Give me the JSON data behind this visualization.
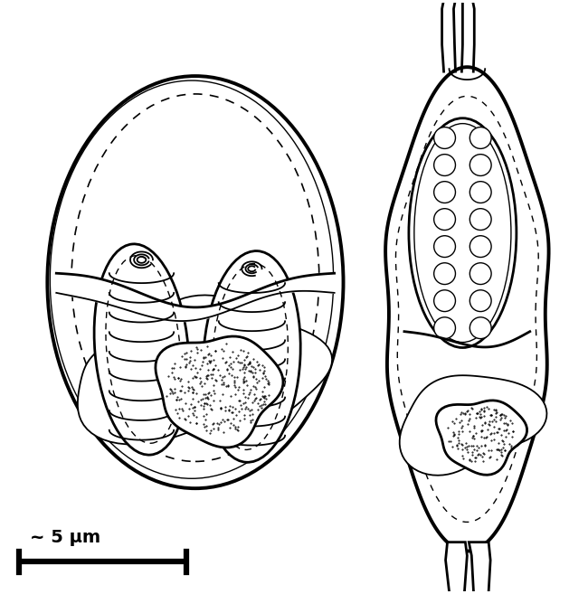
{
  "background_color": "#ffffff",
  "line_color": "#000000",
  "scale_bar_label": "~ 5 μm",
  "figsize": [
    6.5,
    6.57
  ],
  "dpi": 100
}
